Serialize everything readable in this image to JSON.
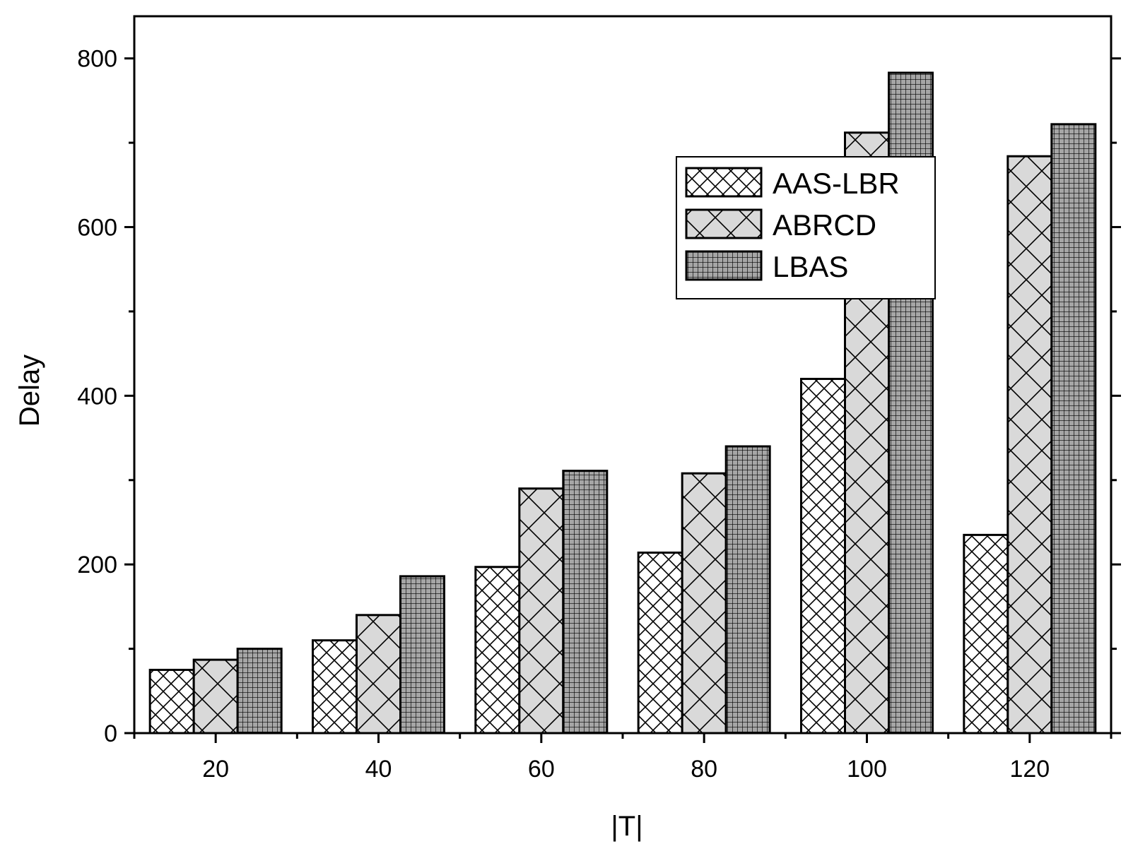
{
  "chart_data": {
    "type": "bar",
    "title": "",
    "xlabel": "|T|",
    "ylabel": "Delay",
    "categories": [
      "20",
      "40",
      "60",
      "80",
      "100",
      "120"
    ],
    "ylim": [
      0,
      850
    ],
    "yticks": [
      0,
      200,
      400,
      600,
      800
    ],
    "y_minor_step": 100,
    "grid": false,
    "legend_position": "top-right",
    "series": [
      {
        "name": "AAS-LBR",
        "values": [
          75,
          110,
          197,
          214,
          420,
          235
        ],
        "fill": "#ffffff",
        "pattern": "crosshatch-fine"
      },
      {
        "name": "ABRCD",
        "values": [
          87,
          140,
          290,
          308,
          712,
          684
        ],
        "fill": "#d9d9d9",
        "pattern": "crosshatch-wide"
      },
      {
        "name": "LBAS",
        "values": [
          100,
          186,
          311,
          340,
          783,
          722
        ],
        "fill": "#a6a6a6",
        "pattern": "grid-fine"
      }
    ]
  }
}
